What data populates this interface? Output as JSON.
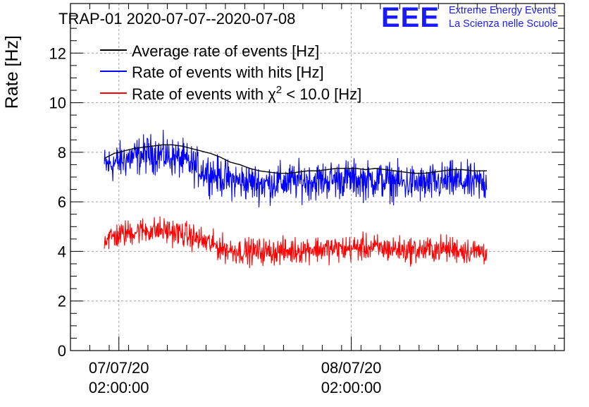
{
  "title": "TRAP-01 2020-07-07--2020-07-08",
  "logo": {
    "mark": "EEE",
    "line1": "Extreme Energy Events",
    "line2": "La Scienza nelle Scuole",
    "color": "#1a1aff"
  },
  "colors": {
    "average": "#000000",
    "hits": "#0000ff",
    "chi2": "#ff0000",
    "grid": "#a0a0a0"
  },
  "chart_data": {
    "type": "line",
    "title": "TRAP-01 2020-07-07--2020-07-08",
    "xlabel": "",
    "ylabel": "Rate [Hz]",
    "ylim": [
      0,
      14
    ],
    "yticks": [
      "0",
      "2",
      "4",
      "6",
      "8",
      "10",
      "12"
    ],
    "xlim": [
      "2020-07-06T21:00:00",
      "2020-07-09T00:00:00"
    ],
    "xticks": [
      {
        "date": "07/07/20",
        "time": "02:00:00"
      },
      {
        "date": "08/07/20",
        "time": "02:00:00"
      }
    ],
    "grid": true,
    "legend_position": "top-left",
    "legend": [
      {
        "label": "Average rate of events [Hz]",
        "series": "average"
      },
      {
        "label": "Rate of events with hits [Hz]",
        "series": "hits"
      },
      {
        "label_prefix": "Rate of events with ",
        "label_symbol": "χ",
        "label_sup": "2",
        "label_suffix": " < 10.0 [Hz]",
        "series": "chi2"
      }
    ],
    "series": [
      {
        "name": "Average rate of events [Hz]",
        "key": "average",
        "start": "2020-07-07T00:30:00",
        "end": "2020-07-08T16:00:00",
        "x": [
          "2020-07-07T00:30:00",
          "2020-07-07T01:30:00",
          "2020-07-07T02:30:00",
          "2020-07-07T03:30:00",
          "2020-07-07T04:30:00",
          "2020-07-07T05:30:00",
          "2020-07-07T06:30:00",
          "2020-07-07T07:30:00",
          "2020-07-07T08:30:00",
          "2020-07-07T09:30:00",
          "2020-07-07T10:30:00",
          "2020-07-07T11:30:00",
          "2020-07-07T12:30:00",
          "2020-07-07T13:30:00",
          "2020-07-07T14:30:00",
          "2020-07-07T15:30:00",
          "2020-07-07T16:30:00",
          "2020-07-07T17:30:00",
          "2020-07-07T18:30:00",
          "2020-07-07T19:30:00",
          "2020-07-07T20:30:00",
          "2020-07-07T21:30:00",
          "2020-07-07T22:30:00",
          "2020-07-07T23:30:00",
          "2020-07-08T00:30:00",
          "2020-07-08T01:30:00",
          "2020-07-08T02:30:00",
          "2020-07-08T03:30:00",
          "2020-07-08T04:30:00",
          "2020-07-08T05:30:00",
          "2020-07-08T06:30:00",
          "2020-07-08T07:30:00",
          "2020-07-08T08:30:00",
          "2020-07-08T09:30:00",
          "2020-07-08T10:30:00",
          "2020-07-08T11:30:00",
          "2020-07-08T12:30:00",
          "2020-07-08T13:30:00",
          "2020-07-08T14:30:00",
          "2020-07-08T15:30:00"
        ],
        "values": [
          7.75,
          7.95,
          8.05,
          8.15,
          8.2,
          8.25,
          8.3,
          8.3,
          8.25,
          8.15,
          8.05,
          7.95,
          7.8,
          7.6,
          7.5,
          7.35,
          7.25,
          7.2,
          7.15,
          7.15,
          7.2,
          7.25,
          7.25,
          7.3,
          7.35,
          7.35,
          7.35,
          7.3,
          7.35,
          7.3,
          7.25,
          7.2,
          7.15,
          7.15,
          7.2,
          7.25,
          7.3,
          7.3,
          7.25,
          7.25
        ]
      },
      {
        "name": "Rate of events with hits [Hz]",
        "key": "hits",
        "start": "2020-07-07T00:30:00",
        "end": "2020-07-08T16:00:00",
        "x": [
          "2020-07-07T00:30:00",
          "2020-07-07T01:30:00",
          "2020-07-07T02:30:00",
          "2020-07-07T03:30:00",
          "2020-07-07T04:30:00",
          "2020-07-07T05:30:00",
          "2020-07-07T06:30:00",
          "2020-07-07T07:30:00",
          "2020-07-07T08:30:00",
          "2020-07-07T09:30:00",
          "2020-07-07T10:30:00",
          "2020-07-07T11:30:00",
          "2020-07-07T12:30:00",
          "2020-07-07T13:30:00",
          "2020-07-07T14:30:00",
          "2020-07-07T15:30:00",
          "2020-07-07T16:30:00",
          "2020-07-07T17:30:00",
          "2020-07-07T18:30:00",
          "2020-07-07T19:30:00",
          "2020-07-07T20:30:00",
          "2020-07-07T21:30:00",
          "2020-07-07T22:30:00",
          "2020-07-07T23:30:00",
          "2020-07-08T00:30:00",
          "2020-07-08T01:30:00",
          "2020-07-08T02:30:00",
          "2020-07-08T03:30:00",
          "2020-07-08T04:30:00",
          "2020-07-08T05:30:00",
          "2020-07-08T06:30:00",
          "2020-07-08T07:30:00",
          "2020-07-08T08:30:00",
          "2020-07-08T09:30:00",
          "2020-07-08T10:30:00",
          "2020-07-08T11:30:00",
          "2020-07-08T12:30:00",
          "2020-07-08T13:30:00",
          "2020-07-08T14:30:00",
          "2020-07-08T15:30:00"
        ],
        "values": [
          7.45,
          7.55,
          7.7,
          7.8,
          7.9,
          7.95,
          7.9,
          7.8,
          7.7,
          7.5,
          7.3,
          7.15,
          7.0,
          6.9,
          6.8,
          6.8,
          6.75,
          6.75,
          6.8,
          6.8,
          6.85,
          6.85,
          6.85,
          6.9,
          6.9,
          6.95,
          6.9,
          6.85,
          6.9,
          6.85,
          6.8,
          6.75,
          6.75,
          6.7,
          6.75,
          6.8,
          6.85,
          6.8,
          6.75,
          6.75
        ],
        "spread": 0.65
      },
      {
        "name": "Rate of events with χ2 < 10.0 [Hz]",
        "key": "chi2",
        "start": "2020-07-07T00:30:00",
        "end": "2020-07-08T16:00:00",
        "x": [
          "2020-07-07T00:30:00",
          "2020-07-07T01:30:00",
          "2020-07-07T02:30:00",
          "2020-07-07T03:30:00",
          "2020-07-07T04:30:00",
          "2020-07-07T05:30:00",
          "2020-07-07T06:30:00",
          "2020-07-07T07:30:00",
          "2020-07-07T08:30:00",
          "2020-07-07T09:30:00",
          "2020-07-07T10:30:00",
          "2020-07-07T11:30:00",
          "2020-07-07T12:30:00",
          "2020-07-07T13:30:00",
          "2020-07-07T14:30:00",
          "2020-07-07T15:30:00",
          "2020-07-07T16:30:00",
          "2020-07-07T17:30:00",
          "2020-07-07T18:30:00",
          "2020-07-07T19:30:00",
          "2020-07-07T20:30:00",
          "2020-07-07T21:30:00",
          "2020-07-07T22:30:00",
          "2020-07-07T23:30:00",
          "2020-07-08T00:30:00",
          "2020-07-08T01:30:00",
          "2020-07-08T02:30:00",
          "2020-07-08T03:30:00",
          "2020-07-08T04:30:00",
          "2020-07-08T05:30:00",
          "2020-07-08T06:30:00",
          "2020-07-08T07:30:00",
          "2020-07-08T08:30:00",
          "2020-07-08T09:30:00",
          "2020-07-08T10:30:00",
          "2020-07-08T11:30:00",
          "2020-07-08T12:30:00",
          "2020-07-08T13:30:00",
          "2020-07-08T14:30:00",
          "2020-07-08T15:30:00"
        ],
        "values": [
          4.5,
          4.6,
          4.7,
          4.8,
          4.85,
          4.85,
          4.85,
          4.8,
          4.7,
          4.6,
          4.45,
          4.3,
          4.15,
          4.05,
          4.0,
          4.0,
          4.0,
          4.0,
          4.0,
          4.0,
          4.05,
          4.1,
          4.1,
          4.1,
          4.1,
          4.1,
          4.15,
          4.15,
          4.15,
          4.1,
          4.1,
          4.05,
          4.05,
          4.05,
          4.1,
          4.1,
          4.1,
          4.05,
          4.0,
          4.0
        ],
        "spread": 0.45
      }
    ]
  }
}
